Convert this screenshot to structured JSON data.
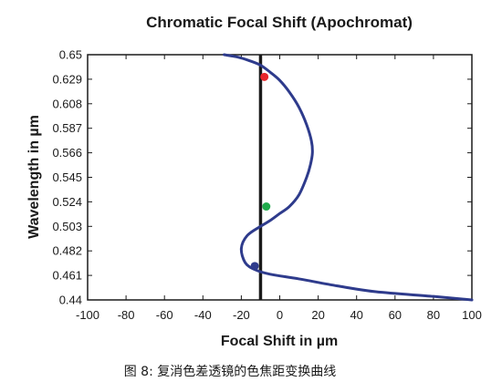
{
  "chart_data": {
    "type": "line",
    "title": "Chromatic Focal Shift (Apochromat)",
    "xlabel": "Focal Shift in µm",
    "ylabel": "Wavelength in µm",
    "xlim": [
      -100,
      100
    ],
    "ylim": [
      0.44,
      0.65
    ],
    "x_ticks": [
      "-100",
      "-80",
      "-60",
      "-40",
      "-20",
      "0",
      "20",
      "40",
      "60",
      "80",
      "100"
    ],
    "y_ticks": [
      "0.44",
      "0.461",
      "0.482",
      "0.503",
      "0.524",
      "0.545",
      "0.566",
      "0.587",
      "0.608",
      "0.629",
      "0.65"
    ],
    "grid": false,
    "series": [
      {
        "color": "#2e3b8c",
        "x": [
          100,
          80,
          50,
          30,
          10,
          -5,
          -13,
          -18,
          -20,
          -17,
          -10,
          -5,
          0,
          5,
          10,
          14,
          16,
          17,
          16.5,
          14,
          10,
          5,
          0,
          -5,
          -10,
          -16,
          -22,
          -29
        ],
        "y": [
          0.44,
          0.443,
          0.447,
          0.452,
          0.458,
          0.462,
          0.466,
          0.472,
          0.484,
          0.495,
          0.503,
          0.508,
          0.514,
          0.52,
          0.53,
          0.545,
          0.556,
          0.566,
          0.576,
          0.59,
          0.605,
          0.618,
          0.628,
          0.635,
          0.641,
          0.645,
          0.648,
          0.65
        ]
      }
    ],
    "reference_line": {
      "x": -10,
      "color": "#1a1a1a"
    },
    "markers": [
      {
        "x": -8,
        "y": 0.631,
        "color": "#e8262b"
      },
      {
        "x": -7,
        "y": 0.52,
        "color": "#1faa4b"
      },
      {
        "x": -13,
        "y": 0.469,
        "color": "#2e3b8c"
      }
    ]
  },
  "caption": "图 8: 复消色差透镜的色焦距变换曲线"
}
